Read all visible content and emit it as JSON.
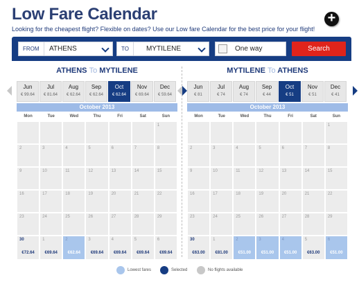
{
  "page": {
    "title": "Low Fare Calendar",
    "subtitle": "Looking for the cheapest flight? Flexible on dates? Use our Low fare Calendar for the best price for your flight!"
  },
  "icons": {
    "add": "plus-circle-icon"
  },
  "search": {
    "from_label": "FROM",
    "from_value": "ATHENS",
    "to_label": "TO",
    "to_value": "MYTILENE",
    "oneway_label": "One way",
    "search_label": "Search"
  },
  "colors": {
    "brand": "#163d83",
    "search_button": "#e0241b",
    "lowest": "#a9c6ec",
    "selected": "#163d83",
    "no_flights": "#c8c8c8"
  },
  "outbound": {
    "from": "ATHENS",
    "to_word": "To",
    "to": "MYTILENE",
    "months": [
      {
        "name": "Jun",
        "price": "€ 99.64"
      },
      {
        "name": "Jul",
        "price": "€ 81.64"
      },
      {
        "name": "Aug",
        "price": "€ 62.64"
      },
      {
        "name": "Sep",
        "price": "€ 62.64"
      },
      {
        "name": "Oct",
        "price": "€ 62.64",
        "active": true
      },
      {
        "name": "Nov",
        "price": "€ 69.64"
      },
      {
        "name": "Dec",
        "price": "€ 59.64"
      }
    ],
    "header": "October 2013",
    "days": [
      "Mon",
      "Tue",
      "Wed",
      "Thu",
      "Fri",
      "Sat",
      "Sun"
    ],
    "weeks": [
      [
        {
          "d": ""
        },
        {
          "d": ""
        },
        {
          "d": ""
        },
        {
          "d": ""
        },
        {
          "d": ""
        },
        {
          "d": ""
        },
        {
          "d": "1"
        }
      ],
      [
        {
          "d": "2"
        },
        {
          "d": "3"
        },
        {
          "d": "4"
        },
        {
          "d": "5"
        },
        {
          "d": "6"
        },
        {
          "d": "7"
        },
        {
          "d": "8"
        }
      ],
      [
        {
          "d": "9"
        },
        {
          "d": "10"
        },
        {
          "d": "11"
        },
        {
          "d": "12"
        },
        {
          "d": "13"
        },
        {
          "d": "14"
        },
        {
          "d": "15"
        }
      ],
      [
        {
          "d": "16"
        },
        {
          "d": "17"
        },
        {
          "d": "18"
        },
        {
          "d": "19"
        },
        {
          "d": "20"
        },
        {
          "d": "21"
        },
        {
          "d": "22"
        }
      ],
      [
        {
          "d": "23"
        },
        {
          "d": "24"
        },
        {
          "d": "25"
        },
        {
          "d": "26"
        },
        {
          "d": "27"
        },
        {
          "d": "28"
        },
        {
          "d": "29"
        }
      ],
      [
        {
          "d": "30",
          "p": "€72.64",
          "cur": true
        },
        {
          "d": "1",
          "p": "€69.64"
        },
        {
          "d": "2",
          "p": "€62.64",
          "low": true
        },
        {
          "d": "3",
          "p": "€69.64"
        },
        {
          "d": "4",
          "p": "€69.64"
        },
        {
          "d": "5",
          "p": "€69.64"
        },
        {
          "d": "6",
          "p": "€69.64"
        }
      ]
    ]
  },
  "inbound": {
    "from": "MYTILENE",
    "to_word": "To",
    "to": "ATHENS",
    "months": [
      {
        "name": "Jun",
        "price": "€ 81"
      },
      {
        "name": "Jul",
        "price": "€ 74"
      },
      {
        "name": "Aug",
        "price": "€ 74"
      },
      {
        "name": "Sep",
        "price": "€ 44"
      },
      {
        "name": "Oct",
        "price": "€ 51",
        "active": true
      },
      {
        "name": "Nov",
        "price": "€ 51"
      },
      {
        "name": "Dec",
        "price": "€ 41"
      }
    ],
    "header": "October 2013",
    "days": [
      "Mon",
      "Tue",
      "Wed",
      "Thu",
      "Fri",
      "Sat",
      "Sun"
    ],
    "weeks": [
      [
        {
          "d": ""
        },
        {
          "d": ""
        },
        {
          "d": ""
        },
        {
          "d": ""
        },
        {
          "d": ""
        },
        {
          "d": ""
        },
        {
          "d": "1"
        }
      ],
      [
        {
          "d": "2"
        },
        {
          "d": "3"
        },
        {
          "d": "4"
        },
        {
          "d": "5"
        },
        {
          "d": "6"
        },
        {
          "d": "7"
        },
        {
          "d": "8"
        }
      ],
      [
        {
          "d": "9"
        },
        {
          "d": "10"
        },
        {
          "d": "11"
        },
        {
          "d": "12"
        },
        {
          "d": "13"
        },
        {
          "d": "14"
        },
        {
          "d": "15"
        }
      ],
      [
        {
          "d": "16"
        },
        {
          "d": "17"
        },
        {
          "d": "18"
        },
        {
          "d": "19"
        },
        {
          "d": "20"
        },
        {
          "d": "21"
        },
        {
          "d": "22"
        }
      ],
      [
        {
          "d": "23"
        },
        {
          "d": "24"
        },
        {
          "d": "25"
        },
        {
          "d": "26"
        },
        {
          "d": "27"
        },
        {
          "d": "28"
        },
        {
          "d": "29"
        }
      ],
      [
        {
          "d": "30",
          "p": "€63.00",
          "cur": true
        },
        {
          "d": "1",
          "p": "€81.00"
        },
        {
          "d": "2",
          "p": "€51.00",
          "low": true
        },
        {
          "d": "3",
          "p": "€51.00",
          "low": true
        },
        {
          "d": "4",
          "p": "€51.00",
          "low": true
        },
        {
          "d": "5",
          "p": "€63.00"
        },
        {
          "d": "6",
          "p": "€51.00",
          "low": true
        }
      ]
    ]
  },
  "legend": {
    "lowest": "Lowest fares",
    "selected": "Selected",
    "none": "No flights available"
  }
}
